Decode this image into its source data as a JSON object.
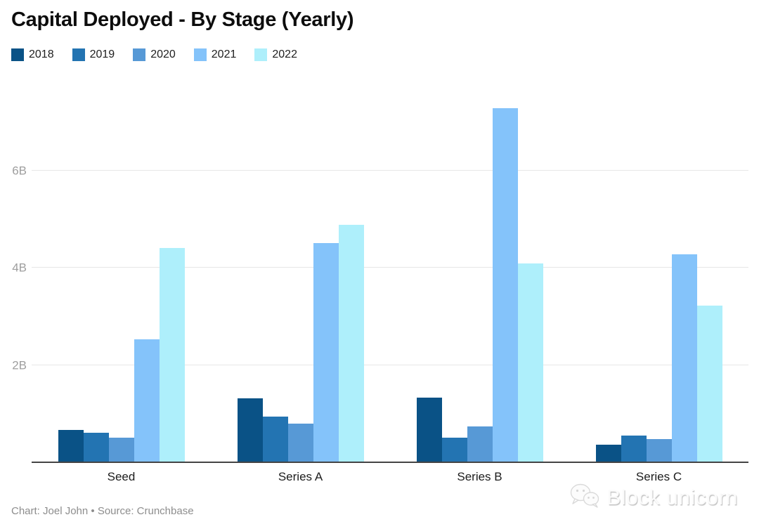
{
  "title": "Capital Deployed - By Stage (Yearly)",
  "chart_data": {
    "type": "bar",
    "categories": [
      "Seed",
      "Series A",
      "Series B",
      "Series C"
    ],
    "series": [
      {
        "name": "2018",
        "color": "#0a5286",
        "values": [
          0.67,
          1.32,
          1.33,
          0.36
        ]
      },
      {
        "name": "2019",
        "color": "#2374b2",
        "values": [
          0.6,
          0.94,
          0.5,
          0.55
        ]
      },
      {
        "name": "2020",
        "color": "#5799d6",
        "values": [
          0.5,
          0.79,
          0.73,
          0.48
        ]
      },
      {
        "name": "2021",
        "color": "#84c3fa",
        "values": [
          2.53,
          4.5,
          7.28,
          4.27
        ]
      },
      {
        "name": "2022",
        "color": "#aeeffb",
        "values": [
          4.4,
          4.88,
          4.08,
          3.22
        ]
      }
    ],
    "title": "Capital Deployed - By Stage (Yearly)",
    "xlabel": "",
    "ylabel": "",
    "unit": "B",
    "ylim": [
      0,
      8
    ],
    "yticks": [
      {
        "value": 2,
        "label": "2B"
      },
      {
        "value": 4,
        "label": "4B"
      },
      {
        "value": 6,
        "label": "6B"
      }
    ],
    "grid": true,
    "legend_position": "top-left",
    "axis_color": "#444444",
    "gridline_color": "#e7e7e7"
  },
  "footer": {
    "credit": "Chart: Joel John • Source: Crunchbase"
  },
  "watermark": {
    "text": "Block unicorn",
    "logo": "chat-bubbles-icon"
  }
}
